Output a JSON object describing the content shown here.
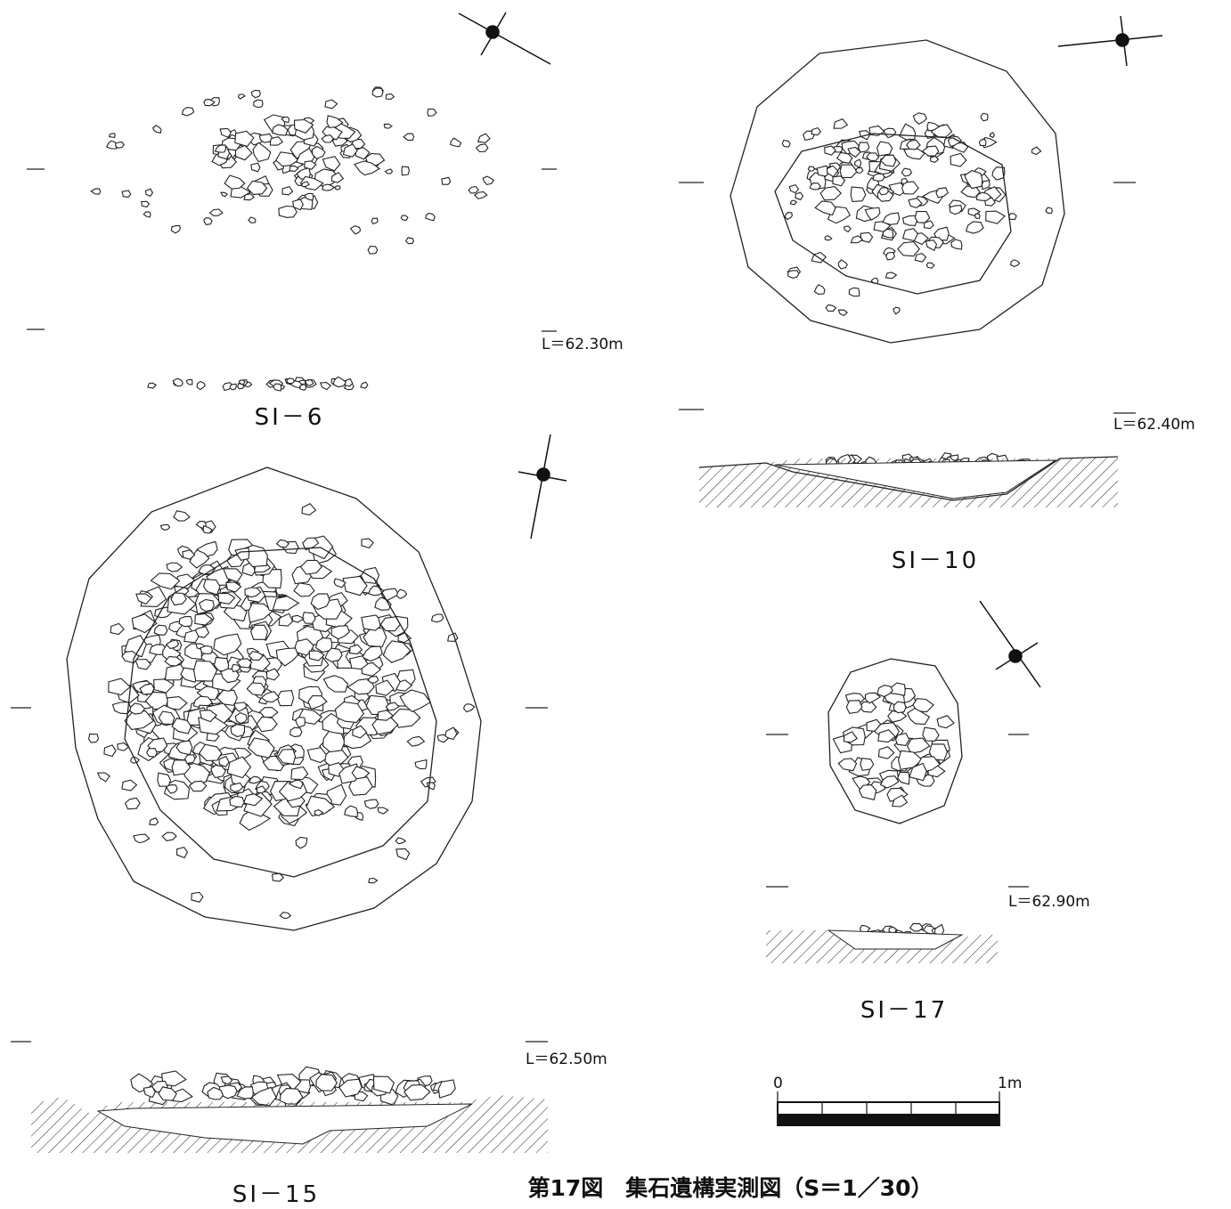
{
  "features": [
    {
      "label": "SI－6",
      "level": "L＝62.30m"
    },
    {
      "label": "SI－10",
      "level": "L＝62.40m"
    },
    {
      "label": "SI－17",
      "level": "L＝62.90m"
    },
    {
      "label": "SI－15",
      "level": "L＝62.50m"
    }
  ],
  "scale_bar": {
    "start": "0",
    "end": "1m"
  },
  "caption": "第17図　集石遺構実測図（S＝1／30）"
}
